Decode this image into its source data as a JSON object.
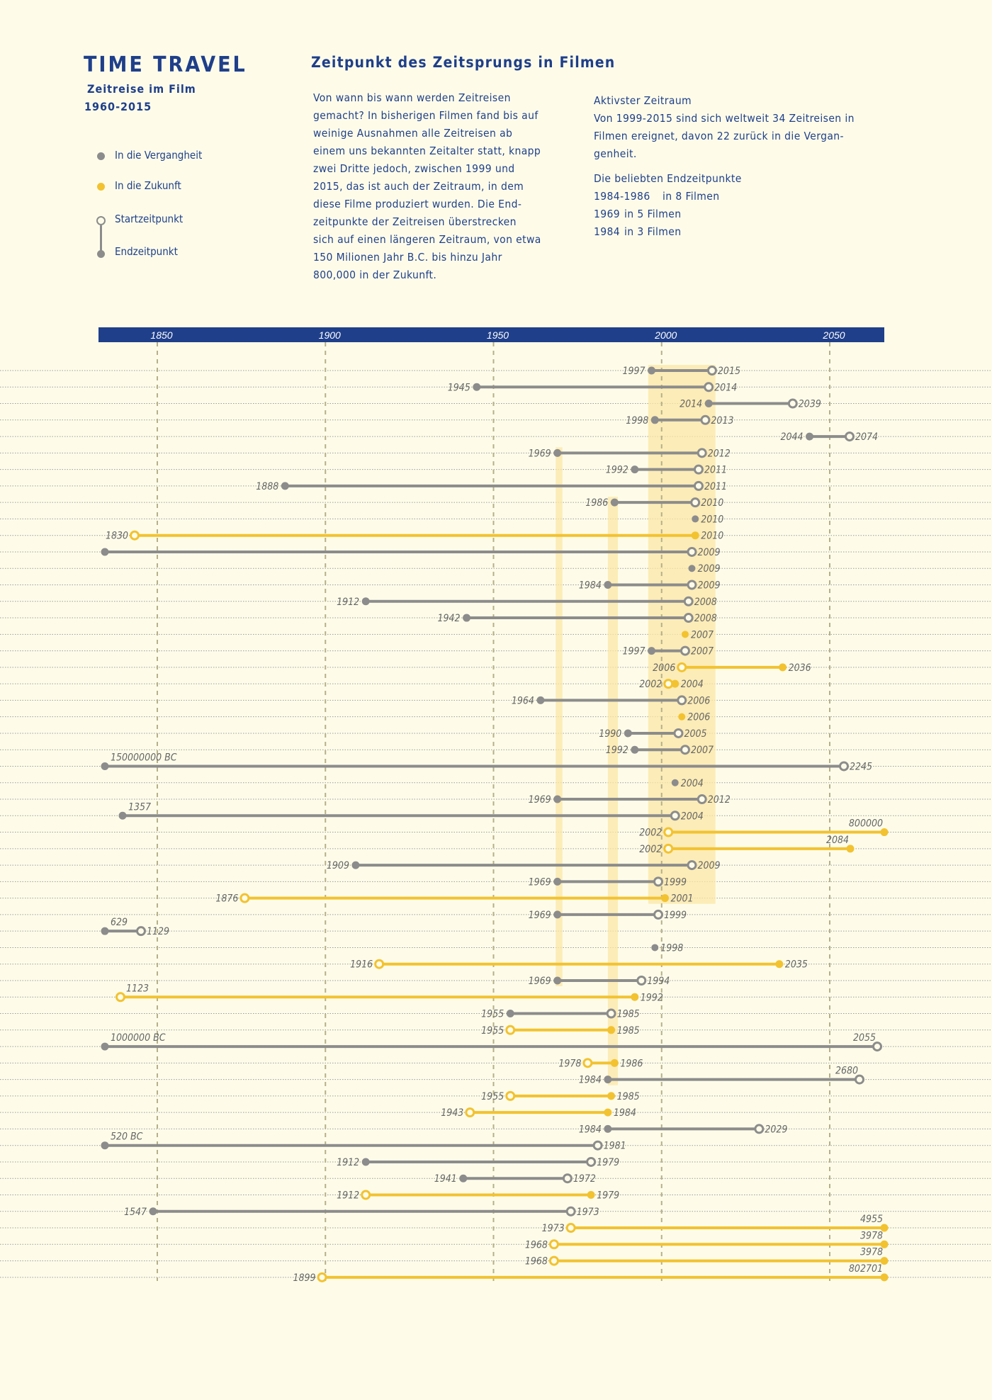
{
  "header": {
    "title": "TIME TRAVEL",
    "subtitle": "Zeitreise im Film",
    "years": "1960-2015",
    "heading": "Zeitpunkt des Zeitsprungs in Filmen",
    "paragraph": "Von wann bis wann werden Zeitreisen\ngemacht? In bisherigen Filmen fand bis auf\nweinige Ausnahmen alle Zeitreisen ab\neinem uns bekannten Zeitalter statt, knapp\nzwei Dritte jedoch, zwischen 1999 und\n2015, das ist auch der Zeitraum, in dem\ndiese Filme produziert wurden.  Die End-\nzeitpunkte der Zeitreisen überstrecken\nsich auf einen längeren Zeitraum, von etwa\n150 Milionen Jahr B.C. bis hinzu Jahr\n800,000 in der Zukunft.",
    "active_title": "Aktivster Zeitraum",
    "active_text": "Von 1999-2015 sind sich weltweit 34 Zeitreisen in\nFilmen ereignet, davon 22 zurück in die Vergan-\ngenheit.",
    "popular_title": "Die beliebten Endzeitpunkte",
    "popular": [
      {
        "period": "1984-1986",
        "count": "in 8 Filmen"
      },
      {
        "period": "1969",
        "count": "in 5 Filmen"
      },
      {
        "period": "1984",
        "count": "in 3 Filmen"
      }
    ]
  },
  "legend": {
    "past": "In die Vergangheit",
    "future": "In die Zukunft",
    "start": "Startzeitpunkt",
    "end": "Endzeitpunkt"
  },
  "colors": {
    "past": "#8c8c8c",
    "future": "#f2c230",
    "axis": "#1f3f8a",
    "highlight": "#fbe7a6",
    "background": "#fefce9"
  },
  "chart_data": {
    "type": "timeline-range",
    "x_ticks": [
      "1850",
      "1900",
      "1950",
      "2000",
      "2050"
    ],
    "xlim": [
      1830,
      2060
    ],
    "grid": "vertical dashed at ticks, horizontal dotted per row",
    "highlight_periods": [
      {
        "from": 1996,
        "to": 2016,
        "first_row": 1,
        "last_row": 33
      },
      {
        "from": 1968.5,
        "to": 1970.5,
        "first_row": 6,
        "last_row": 38
      },
      {
        "from": 1984,
        "to": 1987,
        "first_row": 9,
        "last_row": 44
      }
    ],
    "rows": [
      {
        "type": "past",
        "start": "2015",
        "end": "1997"
      },
      {
        "type": "past",
        "start": "2014",
        "end": "1945"
      },
      {
        "type": "past",
        "start": "2039",
        "end": "2014"
      },
      {
        "type": "past",
        "start": "2013",
        "end": "1998"
      },
      {
        "type": "past",
        "start": "2074",
        "end": "2044"
      },
      {
        "type": "past",
        "start": "2012",
        "end": "1969"
      },
      {
        "type": "past",
        "start": "2011",
        "end": "1992"
      },
      {
        "type": "past",
        "start": "2011",
        "end": "1888"
      },
      {
        "type": "past",
        "start": "2010",
        "end": "1986"
      },
      {
        "type": "past",
        "start": "2010",
        "end": "2010"
      },
      {
        "type": "future",
        "start": "1830",
        "end": "2010"
      },
      {
        "type": "past",
        "start": "2009",
        "end": ""
      },
      {
        "type": "past",
        "start": "2009",
        "end": "2009"
      },
      {
        "type": "past",
        "start": "2009",
        "end": "1984"
      },
      {
        "type": "past",
        "start": "2008",
        "end": "1912"
      },
      {
        "type": "past",
        "start": "2008",
        "end": "1942"
      },
      {
        "type": "future",
        "start": "2007",
        "end": "2007"
      },
      {
        "type": "past",
        "start": "2007",
        "end": "1997"
      },
      {
        "type": "future",
        "start": "2006",
        "end": "2036"
      },
      {
        "type": "future",
        "start": "2002",
        "end": "2004"
      },
      {
        "type": "past",
        "start": "2006",
        "end": "1964"
      },
      {
        "type": "future",
        "start": "2006",
        "end": "2006"
      },
      {
        "type": "past",
        "start": "2005",
        "end": "1990"
      },
      {
        "type": "past",
        "start": "2007",
        "end": "1992"
      },
      {
        "type": "past",
        "start": "2245",
        "end": "150000000 BC"
      },
      {
        "type": "past",
        "start": "2004",
        "end": "2004"
      },
      {
        "type": "past",
        "start": "2012",
        "end": "1969"
      },
      {
        "type": "past",
        "start": "2004",
        "end": "1357"
      },
      {
        "type": "future",
        "start": "2002",
        "end": "800000"
      },
      {
        "type": "future",
        "start": "2002",
        "end": "2084"
      },
      {
        "type": "past",
        "start": "2009",
        "end": "1909"
      },
      {
        "type": "past",
        "start": "1999",
        "end": "1969"
      },
      {
        "type": "future",
        "start": "1876",
        "end": "2001"
      },
      {
        "type": "past",
        "start": "1999",
        "end": "1969"
      },
      {
        "type": "past",
        "start": "1129",
        "end": "629"
      },
      {
        "type": "past",
        "start": "1998",
        "end": "1998"
      },
      {
        "type": "future",
        "start": "1916",
        "end": "2035"
      },
      {
        "type": "past",
        "start": "1994",
        "end": "1969"
      },
      {
        "type": "future",
        "start": "1123",
        "end": "1992"
      },
      {
        "type": "past",
        "start": "1985",
        "end": "1955"
      },
      {
        "type": "future",
        "start": "1955",
        "end": "1985"
      },
      {
        "type": "past",
        "start": "2055",
        "end": "1000000 BC"
      },
      {
        "type": "future",
        "start": "1978",
        "end": "1986"
      },
      {
        "type": "past",
        "start": "2680",
        "end": "1984"
      },
      {
        "type": "future",
        "start": "1955",
        "end": "1985"
      },
      {
        "type": "future",
        "start": "1943",
        "end": "1984"
      },
      {
        "type": "past",
        "start": "2029",
        "end": "1984"
      },
      {
        "type": "past",
        "start": "1981",
        "end": "520 BC"
      },
      {
        "type": "past",
        "start": "1979",
        "end": "1912"
      },
      {
        "type": "past",
        "start": "1972",
        "end": "1941"
      },
      {
        "type": "future",
        "start": "1912",
        "end": "1979"
      },
      {
        "type": "past",
        "start": "1973",
        "end": "1547"
      },
      {
        "type": "future",
        "start": "1973",
        "end": "4955"
      },
      {
        "type": "future",
        "start": "1968",
        "end": "3978"
      },
      {
        "type": "future",
        "start": "1968",
        "end": "3978"
      },
      {
        "type": "future",
        "start": "1899",
        "end": "802701"
      }
    ]
  }
}
